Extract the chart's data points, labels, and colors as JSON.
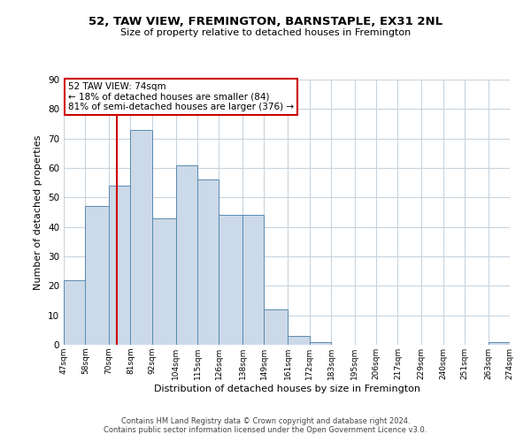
{
  "title": "52, TAW VIEW, FREMINGTON, BARNSTAPLE, EX31 2NL",
  "subtitle": "Size of property relative to detached houses in Fremington",
  "xlabel": "Distribution of detached houses by size in Fremington",
  "ylabel": "Number of detached properties",
  "bar_color": "#ccd9e8",
  "bar_edge_color": "#5a8ab0",
  "vline_color": "#cc0000",
  "vline_x": 74,
  "annotation_line1": "52 TAW VIEW: 74sqm",
  "annotation_line2": "← 18% of detached houses are smaller (84)",
  "annotation_line3": "81% of semi-detached houses are larger (376) →",
  "footer_line1": "Contains HM Land Registry data © Crown copyright and database right 2024.",
  "footer_line2": "Contains public sector information licensed under the Open Government Licence v3.0.",
  "bins": [
    47,
    58,
    70,
    81,
    92,
    104,
    115,
    126,
    138,
    149,
    161,
    172,
    183,
    195,
    206,
    217,
    229,
    240,
    251,
    263,
    274
  ],
  "counts": [
    22,
    47,
    54,
    73,
    43,
    61,
    56,
    44,
    44,
    12,
    3,
    1,
    0,
    0,
    0,
    0,
    0,
    0,
    0,
    1
  ],
  "ylim": [
    0,
    90
  ],
  "yticks": [
    0,
    10,
    20,
    30,
    40,
    50,
    60,
    70,
    80,
    90
  ],
  "background_color": "#ffffff",
  "grid_color": "#c8d4de"
}
